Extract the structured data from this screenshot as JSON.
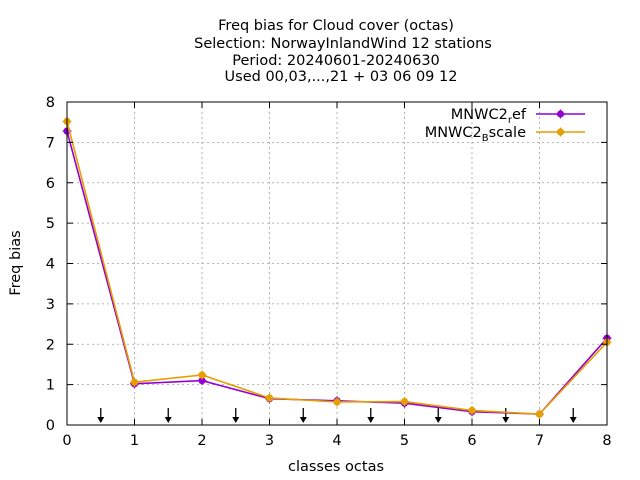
{
  "chart_data": {
    "type": "line",
    "title": [
      "Freq bias  for Cloud cover (octas)",
      "Selection: NorwayInlandWind     12 stations",
      "Period: 20240601-20240630",
      "Used 00,03,...,21 + 03 06 09 12"
    ],
    "xlabel": "classes octas",
    "ylabel": "Freq bias",
    "xlim": [
      0,
      8
    ],
    "ylim": [
      0,
      8
    ],
    "xticks": [
      "0",
      "1",
      "2",
      "3",
      "4",
      "5",
      "6",
      "7",
      "8"
    ],
    "yticks": [
      "0",
      "1",
      "2",
      "3",
      "4",
      "5",
      "6",
      "7",
      "8"
    ],
    "grid": true,
    "legend_position": "top-right",
    "x": [
      0,
      1,
      2,
      3,
      4,
      5,
      6,
      7,
      8
    ],
    "series": [
      {
        "name": "MNWC2_ref",
        "legend_main": "MNWC2",
        "legend_sub": "r",
        "legend_rest": "ef",
        "color": "#9400d3",
        "values": [
          7.28,
          1.02,
          1.1,
          0.65,
          0.6,
          0.54,
          0.33,
          0.27,
          2.15
        ]
      },
      {
        "name": "MNWC2_Bscale",
        "legend_main": "MNWC2",
        "legend_sub": "B",
        "legend_rest": "scale",
        "color": "#e69f00",
        "values": [
          7.52,
          1.06,
          1.24,
          0.67,
          0.57,
          0.58,
          0.36,
          0.27,
          2.05
        ]
      }
    ],
    "arrow_markers_x": [
      0.5,
      1.5,
      2.5,
      3.5,
      4.5,
      5.5,
      6.5,
      7.5
    ]
  }
}
